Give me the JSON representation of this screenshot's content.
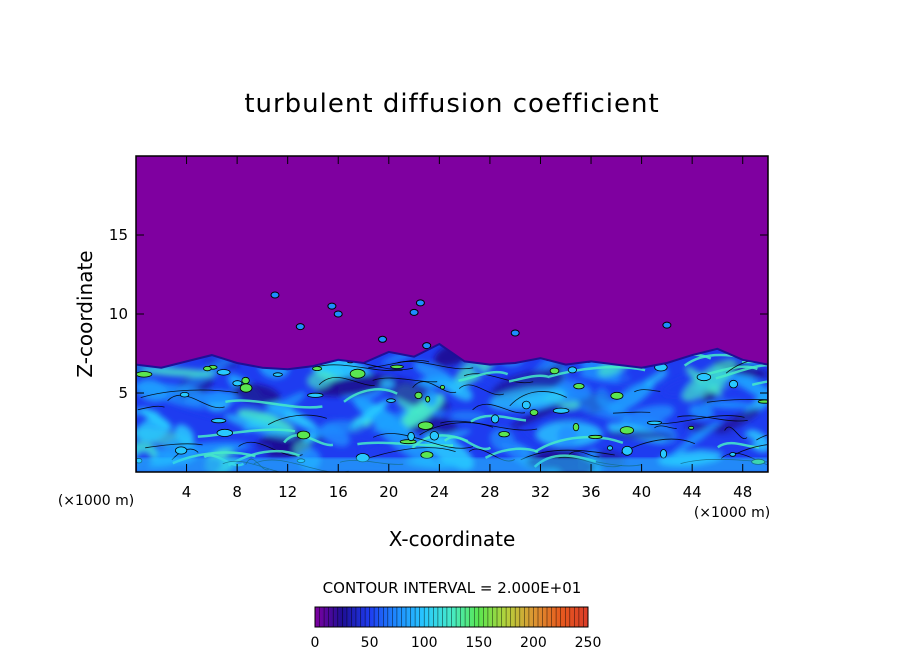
{
  "chart_data": {
    "type": "heatmap",
    "title": "turbulent diffusion coefficient",
    "xlabel": "X-coordinate",
    "ylabel": "Z-coordinate",
    "x_unit": "(×1000 m)",
    "y_unit": "(×1000 m)",
    "xlim": [
      0,
      50
    ],
    "ylim": [
      0,
      20
    ],
    "x_ticks": [
      4,
      8,
      12,
      16,
      20,
      24,
      28,
      32,
      36,
      40,
      44,
      48
    ],
    "y_ticks": [
      5,
      10,
      15
    ],
    "contour_interval_label": "CONTOUR INTERVAL = 2.000E+01",
    "colorbar": {
      "range": [
        0,
        250
      ],
      "ticks": [
        0,
        50,
        100,
        150,
        200,
        250
      ],
      "colors": [
        "#7f00a0",
        "#1e0f96",
        "#1e3cf0",
        "#1e8cff",
        "#28c8ff",
        "#46ebc8",
        "#5ae650",
        "#b4d23c",
        "#dc9632",
        "#e65a1e",
        "#dc3c28"
      ]
    },
    "turbulent_layer_top_z": [
      6.8,
      6.6,
      7.0,
      7.4,
      6.9,
      6.6,
      6.5,
      6.7,
      7.1,
      6.9,
      7.6,
      7.3,
      8.1,
      7.0,
      6.8,
      6.9,
      7.2,
      6.8,
      7.0,
      6.8,
      6.6,
      6.9,
      7.4,
      7.8,
      7.1,
      6.8
    ],
    "background_value": 0
  }
}
